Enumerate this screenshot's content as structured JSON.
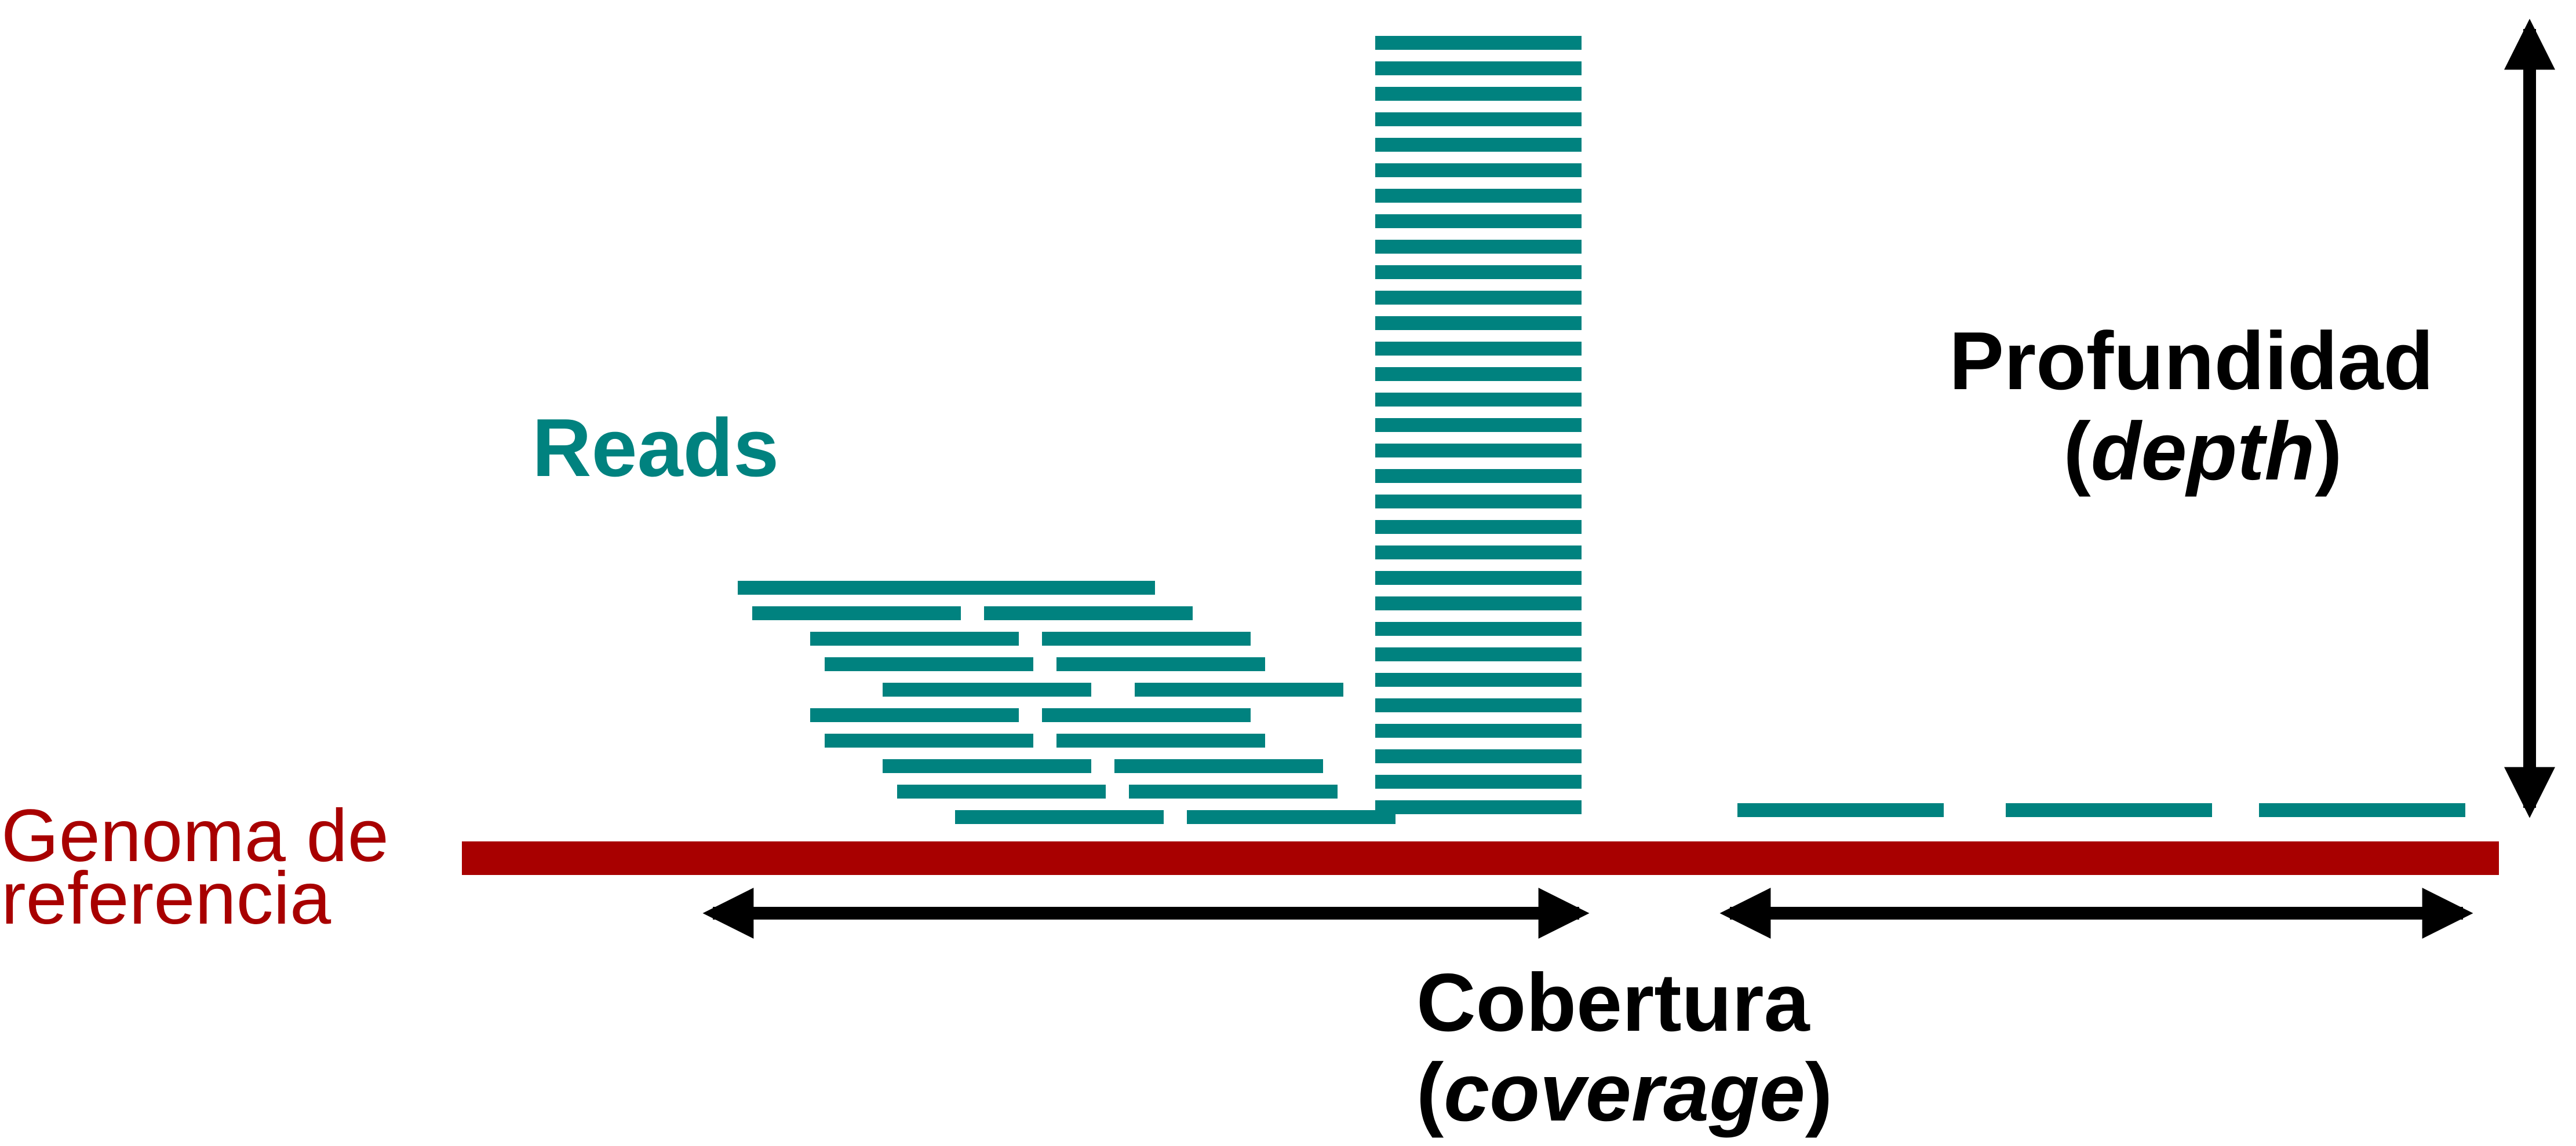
{
  "labels": {
    "reads": "Reads",
    "reference_line1": "Genoma de",
    "reference_line2": "referencia",
    "depth_word": "Profundidad",
    "depth_term": "depth",
    "coverage_word": "Cobertura",
    "coverage_term": "coverage"
  },
  "colors": {
    "read": "#00827F",
    "reference": "#A80000",
    "arrow": "#000000",
    "text": "#000000"
  },
  "reads": {
    "left_cluster_rows": 10,
    "tall_stack_rows": 31,
    "right_region_reads": 3
  }
}
